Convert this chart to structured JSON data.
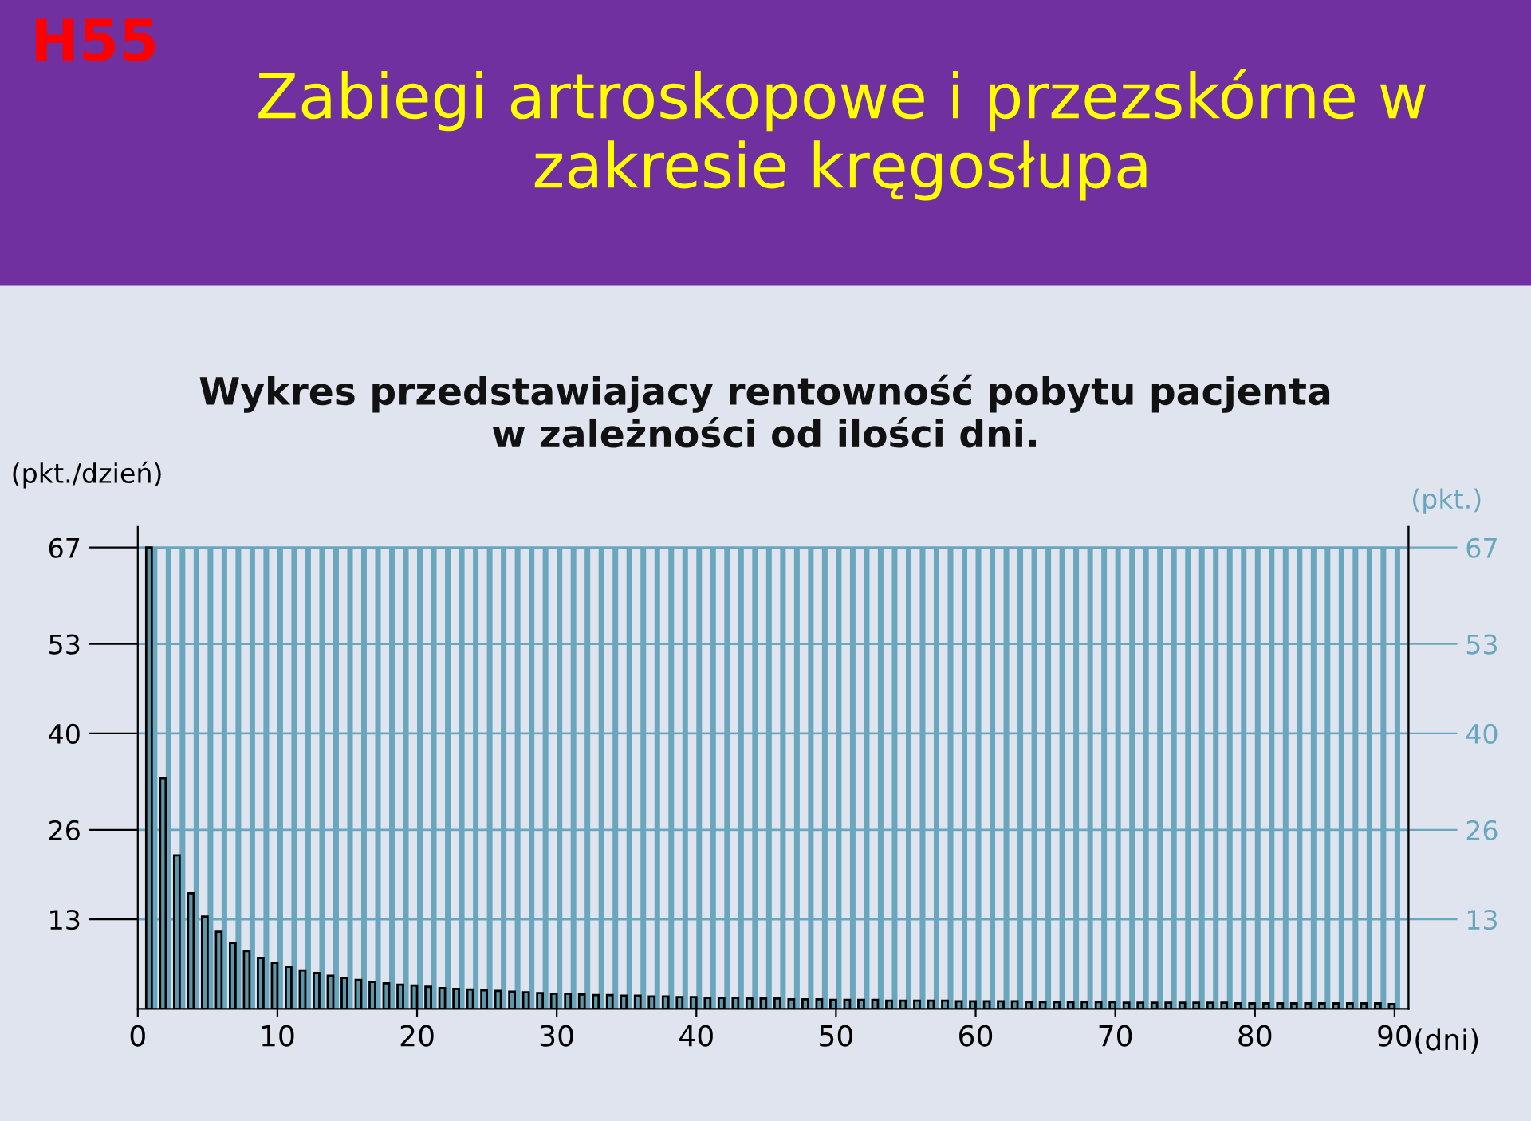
{
  "chart_data": {
    "type": "bar",
    "title": "Zabiegi artroskopowe i przezskórne w zakresie kręgosłupa",
    "subtitle": "Wykres przedstawiajacy rentowność pobytu pacjenta\nw zależności od ilości dni.",
    "annotations": [
      "H55"
    ],
    "xlabel": "(dni)",
    "ylabel": "(pkt./dzień)",
    "y2label": "(pkt.)",
    "x": [
      1,
      2,
      3,
      4,
      5,
      6,
      7,
      8,
      9,
      10,
      11,
      12,
      13,
      14,
      15,
      16,
      17,
      18,
      19,
      20,
      21,
      22,
      23,
      24,
      25,
      26,
      27,
      28,
      29,
      30,
      31,
      32,
      33,
      34,
      35,
      36,
      37,
      38,
      39,
      40,
      41,
      42,
      43,
      44,
      45,
      46,
      47,
      48,
      49,
      50,
      51,
      52,
      53,
      54,
      55,
      56,
      57,
      58,
      59,
      60,
      61,
      62,
      63,
      64,
      65,
      66,
      67,
      68,
      69,
      70,
      71,
      72,
      73,
      74,
      75,
      76,
      77,
      78,
      79,
      80,
      81,
      82,
      83,
      84,
      85,
      86,
      87,
      88,
      89,
      90
    ],
    "series": [
      {
        "color": "#5b97a8",
        "values": [
          67.0,
          33.5,
          22.3,
          16.8,
          13.4,
          11.2,
          9.6,
          8.4,
          7.4,
          6.7,
          6.1,
          5.6,
          5.2,
          4.8,
          4.5,
          4.2,
          3.9,
          3.7,
          3.5,
          3.4,
          3.2,
          3.0,
          2.9,
          2.8,
          2.7,
          2.6,
          2.5,
          2.4,
          2.3,
          2.2,
          2.2,
          2.1,
          2.0,
          2.0,
          1.9,
          1.9,
          1.8,
          1.8,
          1.7,
          1.7,
          1.6,
          1.6,
          1.6,
          1.5,
          1.5,
          1.5,
          1.4,
          1.4,
          1.4,
          1.3,
          1.3,
          1.3,
          1.3,
          1.2,
          1.2,
          1.2,
          1.2,
          1.2,
          1.1,
          1.1,
          1.1,
          1.1,
          1.1,
          1.0,
          1.0,
          1.0,
          1.0,
          1.0,
          1.0,
          1.0,
          0.9,
          0.9,
          0.9,
          0.9,
          0.9,
          0.9,
          0.9,
          0.9,
          0.8,
          0.8,
          0.8,
          0.8,
          0.8,
          0.8,
          0.8,
          0.8,
          0.8,
          0.8,
          0.8,
          0.7
        ]
      },
      {
        "color": "#6aa6bd",
        "axis": "y2",
        "values": [
          67,
          67,
          67,
          67,
          67,
          67,
          67,
          67,
          67,
          67,
          67,
          67,
          67,
          67,
          67,
          67,
          67,
          67,
          67,
          67,
          67,
          67,
          67,
          67,
          67,
          67,
          67,
          67,
          67,
          67,
          67,
          67,
          67,
          67,
          67,
          67,
          67,
          67,
          67,
          67,
          67,
          67,
          67,
          67,
          67,
          67,
          67,
          67,
          67,
          67,
          67,
          67,
          67,
          67,
          67,
          67,
          67,
          67,
          67,
          67,
          67,
          67,
          67,
          67,
          67,
          67,
          67,
          67,
          67,
          67,
          67,
          67,
          67,
          67,
          67,
          67,
          67,
          67,
          67,
          67,
          67,
          67,
          67,
          67,
          67,
          67,
          67,
          67,
          67,
          67
        ]
      }
    ],
    "xlim": [
      0,
      91
    ],
    "xticks": [
      0,
      10,
      20,
      30,
      40,
      50,
      60,
      70,
      80,
      90
    ],
    "ylim": [
      0,
      70
    ],
    "yticks": [
      13,
      26,
      40,
      53,
      67
    ],
    "y2lim": [
      0,
      70
    ],
    "y2ticks": [
      13,
      26,
      40,
      53,
      67
    ],
    "grid": "y",
    "legend": false
  }
}
